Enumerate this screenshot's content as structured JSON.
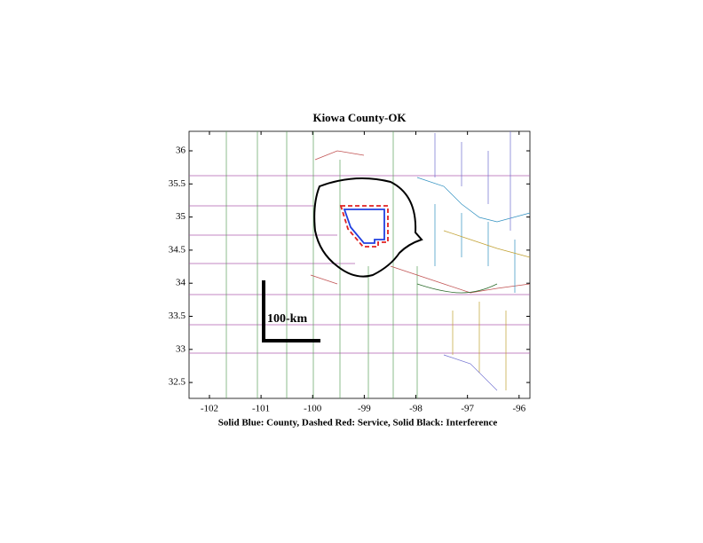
{
  "map": {
    "title": "Kiowa County-OK",
    "xlabel": "Solid Blue: County, Dashed Red: Service, Solid Black: Interference",
    "xlim": [
      -102.395,
      -95.79
    ],
    "ylim": [
      32.26,
      36.295
    ],
    "xticks": [
      -102,
      -101,
      -100,
      -99,
      -98,
      -97,
      -96
    ],
    "yticks": [
      32.5,
      33,
      33.5,
      34,
      34.5,
      35,
      35.5,
      36
    ],
    "scale_label": "100-km"
  }
}
